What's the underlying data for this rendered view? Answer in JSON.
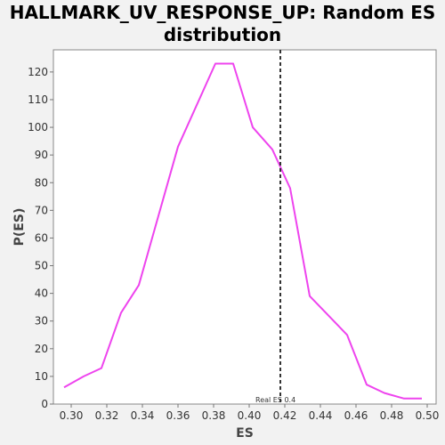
{
  "chart_data": {
    "type": "line",
    "title_lines": [
      "HALLMARK_UV_RESPONSE_UP: Random ES",
      "distribution"
    ],
    "xlabel": "ES",
    "ylabel": "P(ES)",
    "xlim": [
      0.29,
      0.505
    ],
    "ylim": [
      0,
      128
    ],
    "x_ticks": [
      0.3,
      0.32,
      0.34,
      0.36,
      0.38,
      0.4,
      0.42,
      0.44,
      0.46,
      0.48,
      0.5
    ],
    "x_tick_labels": [
      "0.30",
      "0.32",
      "0.34",
      "0.36",
      "0.38",
      "0.40",
      "0.42",
      "0.44",
      "0.46",
      "0.48",
      "0.50"
    ],
    "y_ticks": [
      0,
      10,
      20,
      30,
      40,
      50,
      60,
      70,
      80,
      90,
      100,
      110,
      120
    ],
    "y_tick_labels": [
      "0",
      "10",
      "20",
      "30",
      "40",
      "50",
      "60",
      "70",
      "80",
      "90",
      "100",
      "110",
      "120"
    ],
    "grid": false,
    "series": [
      {
        "color": "#ee44ee",
        "x": [
          0.296,
          0.307,
          0.317,
          0.328,
          0.338,
          0.36,
          0.381,
          0.391,
          0.402,
          0.413,
          0.423,
          0.434,
          0.455,
          0.466,
          0.476,
          0.487,
          0.497
        ],
        "y": [
          6,
          10,
          13,
          33,
          43,
          93,
          123,
          123,
          100,
          92,
          78,
          39,
          25,
          7,
          4,
          2,
          2
        ]
      }
    ],
    "reference_line": {
      "x": 0.4175,
      "label": "Real ES 0.4",
      "color": "#333333"
    }
  }
}
